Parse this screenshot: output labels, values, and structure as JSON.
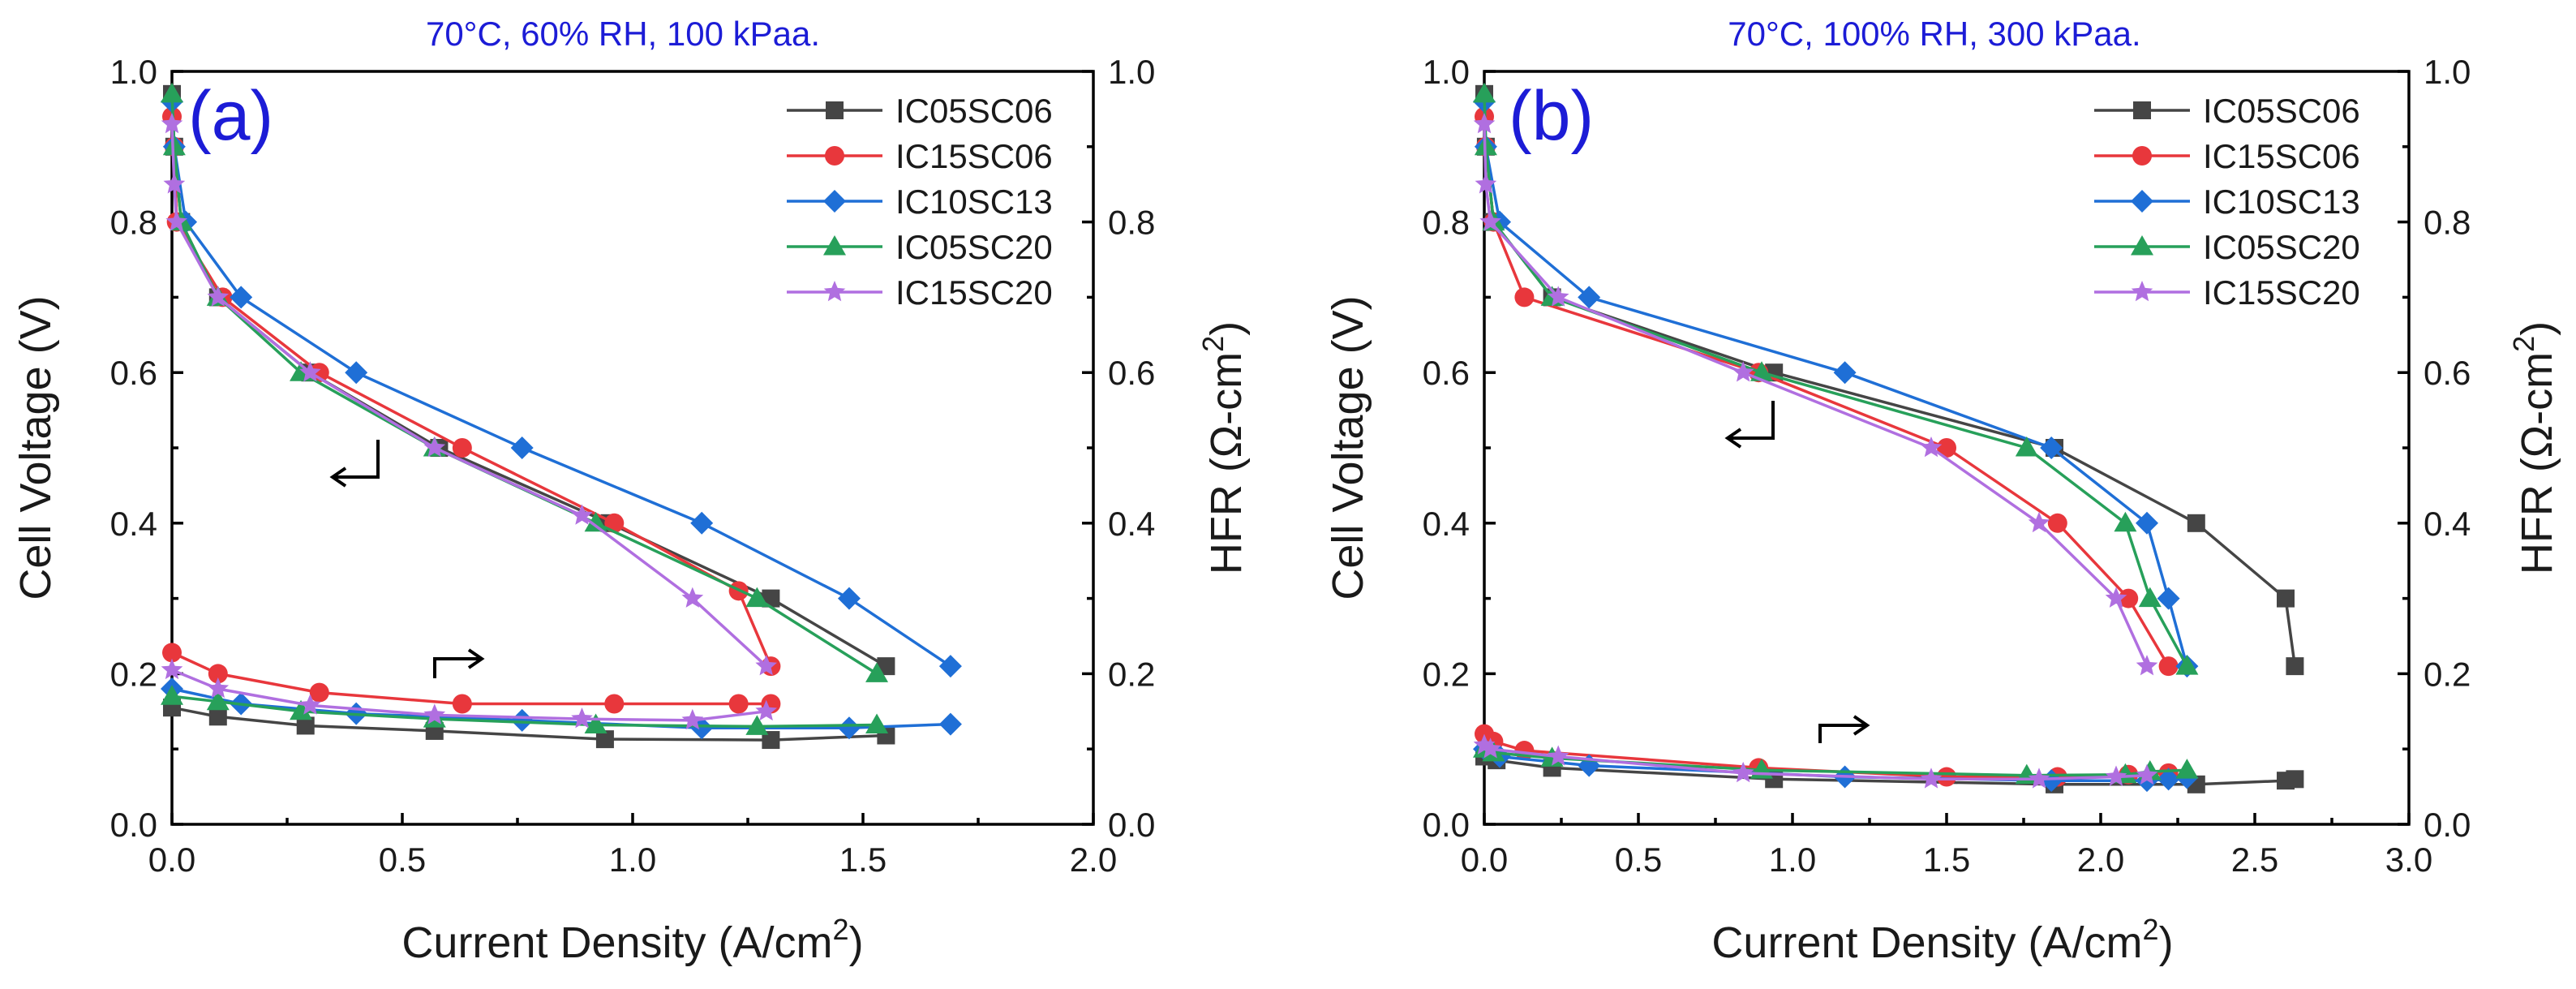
{
  "figure": {
    "colors": {
      "IC05SC06": "#454545",
      "IC15SC06": "#e8373c",
      "IC10SC13": "#1f6fd6",
      "IC05SC20": "#27a05a",
      "IC15SC20": "#b06fe0",
      "title": "#1c1cd6"
    }
  },
  "chart_data": [
    {
      "panel": "a",
      "letter": "(a)",
      "title": "70°C, 60% RH, 100 kPaa.",
      "type": "line",
      "xlabel": "Current Density (A/cm",
      "xlabel_sup": "2",
      "xlabel_end": ")",
      "ylabel_left": "Cell Voltage (V)",
      "ylabel_right": "HFR (Ω-cm",
      "ylabel_right_sup": "2",
      "ylabel_right_end": ")",
      "xlim": [
        0,
        2.0
      ],
      "ylim": [
        0,
        1.0
      ],
      "ylim_right": [
        0,
        1.0
      ],
      "xticks": [
        "0.0",
        "0.5",
        "1.0",
        "1.5",
        "2.0"
      ],
      "xtick_values": [
        0,
        0.5,
        1.0,
        1.5,
        2.0
      ],
      "yticks": [
        "0.0",
        "0.2",
        "0.4",
        "0.6",
        "0.8",
        "1.0"
      ],
      "ytick_values": [
        0,
        0.2,
        0.4,
        0.6,
        0.8,
        1.0
      ],
      "legend_position": "top-right",
      "series": [
        {
          "name": "IC05SC06",
          "marker": "square",
          "polarization": [
            [
              0.0,
              0.97
            ],
            [
              0.005,
              0.9
            ],
            [
              0.02,
              0.8
            ],
            [
              0.1,
              0.7
            ],
            [
              0.3,
              0.6
            ],
            [
              0.58,
              0.5
            ],
            [
              0.95,
              0.4
            ],
            [
              1.3,
              0.3
            ],
            [
              1.55,
              0.21
            ]
          ],
          "hfr": [
            [
              0.0,
              0.155
            ],
            [
              0.1,
              0.143
            ],
            [
              0.29,
              0.131
            ],
            [
              0.57,
              0.124
            ],
            [
              0.94,
              0.113
            ],
            [
              1.3,
              0.112
            ],
            [
              1.55,
              0.118
            ]
          ]
        },
        {
          "name": "IC15SC06",
          "marker": "circle",
          "polarization": [
            [
              0.0,
              0.94
            ],
            [
              0.005,
              0.9
            ],
            [
              0.01,
              0.8
            ],
            [
              0.11,
              0.7
            ],
            [
              0.32,
              0.6
            ],
            [
              0.63,
              0.5
            ],
            [
              0.96,
              0.4
            ],
            [
              1.23,
              0.31
            ],
            [
              1.3,
              0.21
            ]
          ],
          "hfr": [
            [
              0.0,
              0.228
            ],
            [
              0.1,
              0.2
            ],
            [
              0.32,
              0.175
            ],
            [
              0.63,
              0.16
            ],
            [
              0.96,
              0.16
            ],
            [
              1.23,
              0.16
            ],
            [
              1.3,
              0.16
            ]
          ]
        },
        {
          "name": "IC10SC13",
          "marker": "diamond",
          "polarization": [
            [
              0.0,
              0.96
            ],
            [
              0.005,
              0.9
            ],
            [
              0.03,
              0.8
            ],
            [
              0.15,
              0.7
            ],
            [
              0.4,
              0.6
            ],
            [
              0.76,
              0.5
            ],
            [
              1.15,
              0.4
            ],
            [
              1.47,
              0.3
            ],
            [
              1.69,
              0.21
            ]
          ],
          "hfr": [
            [
              0.0,
              0.18
            ],
            [
              0.15,
              0.16
            ],
            [
              0.4,
              0.147
            ],
            [
              0.76,
              0.138
            ],
            [
              1.15,
              0.128
            ],
            [
              1.47,
              0.128
            ],
            [
              1.69,
              0.133
            ]
          ]
        },
        {
          "name": "IC05SC20",
          "marker": "triangle",
          "polarization": [
            [
              0.0,
              0.97
            ],
            [
              0.005,
              0.9
            ],
            [
              0.02,
              0.8
            ],
            [
              0.1,
              0.7
            ],
            [
              0.28,
              0.6
            ],
            [
              0.57,
              0.5
            ],
            [
              0.92,
              0.4
            ],
            [
              1.27,
              0.3
            ],
            [
              1.53,
              0.2
            ]
          ],
          "hfr": [
            [
              0.0,
              0.17
            ],
            [
              0.1,
              0.163
            ],
            [
              0.28,
              0.15
            ],
            [
              0.57,
              0.14
            ],
            [
              0.92,
              0.132
            ],
            [
              1.27,
              0.13
            ],
            [
              1.53,
              0.132
            ]
          ]
        },
        {
          "name": "IC15SC20",
          "marker": "star",
          "polarization": [
            [
              0.0,
              0.93
            ],
            [
              0.005,
              0.85
            ],
            [
              0.01,
              0.8
            ],
            [
              0.1,
              0.7
            ],
            [
              0.3,
              0.6
            ],
            [
              0.57,
              0.5
            ],
            [
              0.89,
              0.41
            ],
            [
              1.13,
              0.3
            ],
            [
              1.29,
              0.21
            ]
          ],
          "hfr": [
            [
              0.0,
              0.205
            ],
            [
              0.1,
              0.18
            ],
            [
              0.3,
              0.158
            ],
            [
              0.57,
              0.145
            ],
            [
              0.89,
              0.14
            ],
            [
              1.13,
              0.138
            ],
            [
              1.29,
              0.15
            ]
          ]
        }
      ],
      "annotations": [
        "left-arrow near polarization curves",
        "right-arrow near HFR curves"
      ]
    },
    {
      "panel": "b",
      "letter": "(b)",
      "title": "70°C, 100% RH, 300 kPaa.",
      "type": "line",
      "xlabel": "Current Density (A/cm",
      "xlabel_sup": "2",
      "xlabel_end": ")",
      "ylabel_left": "Cell Voltage (V)",
      "ylabel_right": "HFR (Ω-cm",
      "ylabel_right_sup": "2",
      "ylabel_right_end": ")",
      "xlim": [
        0,
        3.0
      ],
      "ylim": [
        0,
        1.0
      ],
      "ylim_right": [
        0,
        1.0
      ],
      "xticks": [
        "0.0",
        "0.5",
        "1.0",
        "1.5",
        "2.0",
        "2.5",
        "3.0"
      ],
      "xtick_values": [
        0,
        0.5,
        1.0,
        1.5,
        2.0,
        2.5,
        3.0
      ],
      "yticks": [
        "0.0",
        "0.2",
        "0.4",
        "0.6",
        "0.8",
        "1.0"
      ],
      "ytick_values": [
        0,
        0.2,
        0.4,
        0.6,
        0.8,
        1.0
      ],
      "legend_position": "top-right",
      "series": [
        {
          "name": "IC05SC06",
          "marker": "square",
          "polarization": [
            [
              0.0,
              0.97
            ],
            [
              0.005,
              0.9
            ],
            [
              0.03,
              0.8
            ],
            [
              0.22,
              0.7
            ],
            [
              0.94,
              0.6
            ],
            [
              1.85,
              0.5
            ],
            [
              2.31,
              0.4
            ],
            [
              2.6,
              0.3
            ],
            [
              2.63,
              0.21
            ]
          ],
          "hfr": [
            [
              0.0,
              0.09
            ],
            [
              0.04,
              0.085
            ],
            [
              0.22,
              0.075
            ],
            [
              0.94,
              0.06
            ],
            [
              1.85,
              0.053
            ],
            [
              2.31,
              0.053
            ],
            [
              2.6,
              0.058
            ],
            [
              2.63,
              0.06
            ]
          ]
        },
        {
          "name": "IC15SC06",
          "marker": "circle",
          "polarization": [
            [
              0.0,
              0.94
            ],
            [
              0.005,
              0.9
            ],
            [
              0.03,
              0.8
            ],
            [
              0.13,
              0.7
            ],
            [
              0.89,
              0.6
            ],
            [
              1.5,
              0.5
            ],
            [
              1.86,
              0.4
            ],
            [
              2.09,
              0.3
            ],
            [
              2.22,
              0.21
            ]
          ],
          "hfr": [
            [
              0.0,
              0.12
            ],
            [
              0.03,
              0.11
            ],
            [
              0.13,
              0.098
            ],
            [
              0.89,
              0.075
            ],
            [
              1.5,
              0.063
            ],
            [
              1.86,
              0.063
            ],
            [
              2.09,
              0.066
            ],
            [
              2.22,
              0.068
            ]
          ]
        },
        {
          "name": "IC10SC13",
          "marker": "diamond",
          "polarization": [
            [
              0.0,
              0.96
            ],
            [
              0.005,
              0.9
            ],
            [
              0.05,
              0.8
            ],
            [
              0.34,
              0.7
            ],
            [
              1.17,
              0.6
            ],
            [
              1.84,
              0.5
            ],
            [
              2.15,
              0.4
            ],
            [
              2.22,
              0.3
            ],
            [
              2.28,
              0.21
            ]
          ],
          "hfr": [
            [
              0.0,
              0.1
            ],
            [
              0.05,
              0.09
            ],
            [
              0.34,
              0.078
            ],
            [
              1.17,
              0.063
            ],
            [
              1.84,
              0.058
            ],
            [
              2.15,
              0.058
            ],
            [
              2.22,
              0.06
            ],
            [
              2.28,
              0.062
            ]
          ]
        },
        {
          "name": "IC05SC20",
          "marker": "triangle",
          "polarization": [
            [
              0.0,
              0.97
            ],
            [
              0.005,
              0.9
            ],
            [
              0.03,
              0.8
            ],
            [
              0.22,
              0.7
            ],
            [
              0.9,
              0.6
            ],
            [
              1.76,
              0.5
            ],
            [
              2.08,
              0.4
            ],
            [
              2.16,
              0.3
            ],
            [
              2.28,
              0.21
            ]
          ],
          "hfr": [
            [
              0.0,
              0.1
            ],
            [
              0.03,
              0.095
            ],
            [
              0.22,
              0.088
            ],
            [
              0.9,
              0.072
            ],
            [
              1.76,
              0.065
            ],
            [
              2.08,
              0.066
            ],
            [
              2.16,
              0.07
            ],
            [
              2.28,
              0.072
            ]
          ]
        },
        {
          "name": "IC15SC20",
          "marker": "star",
          "polarization": [
            [
              0.0,
              0.93
            ],
            [
              0.005,
              0.85
            ],
            [
              0.02,
              0.8
            ],
            [
              0.24,
              0.7
            ],
            [
              0.84,
              0.6
            ],
            [
              1.45,
              0.5
            ],
            [
              1.8,
              0.4
            ],
            [
              2.05,
              0.3
            ],
            [
              2.15,
              0.21
            ]
          ],
          "hfr": [
            [
              0.0,
              0.105
            ],
            [
              0.02,
              0.1
            ],
            [
              0.24,
              0.09
            ],
            [
              0.84,
              0.068
            ],
            [
              1.45,
              0.06
            ],
            [
              1.8,
              0.06
            ],
            [
              2.05,
              0.063
            ],
            [
              2.15,
              0.065
            ]
          ]
        }
      ],
      "annotations": [
        "left-arrow near polarization curves",
        "right-arrow near HFR curves"
      ]
    }
  ]
}
